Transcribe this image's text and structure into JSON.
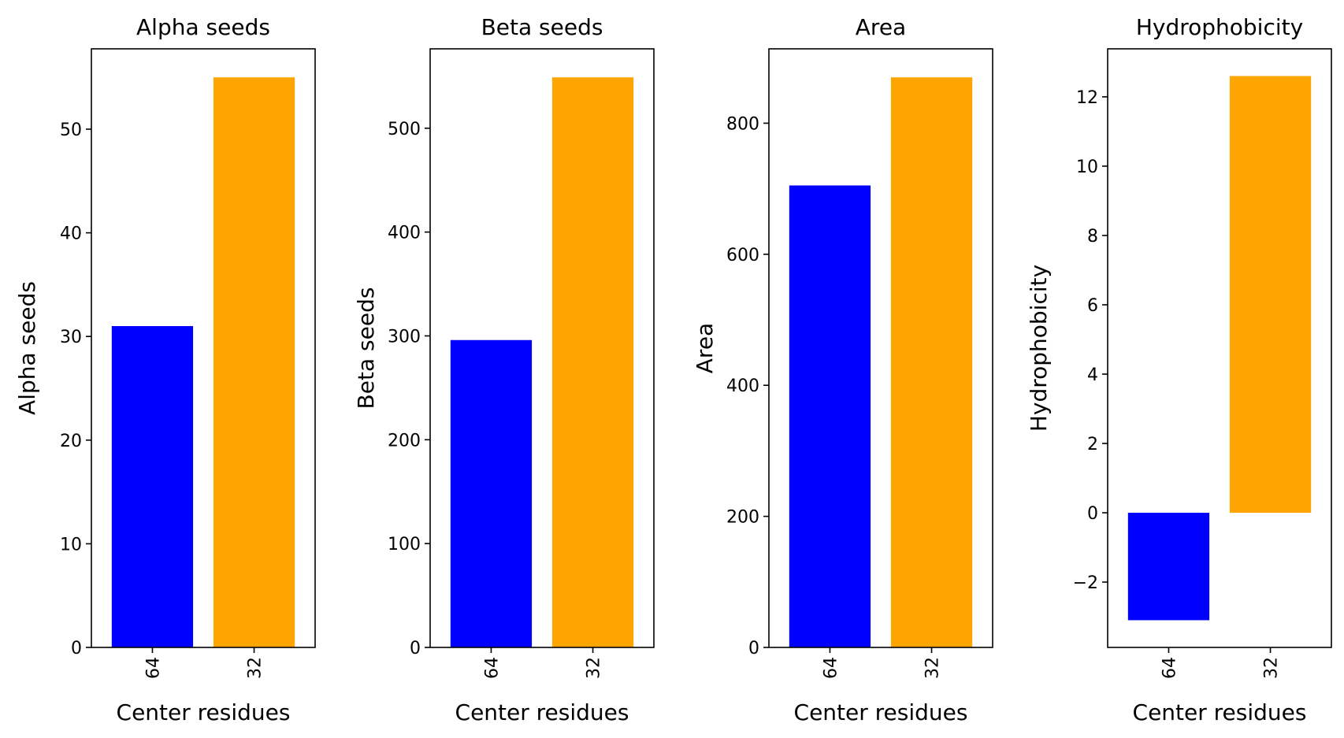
{
  "chart_data": [
    {
      "type": "bar",
      "title": "Alpha seeds",
      "xlabel": "Center residues",
      "ylabel": "Alpha seeds",
      "categories": [
        "64",
        "32"
      ],
      "values": [
        31,
        55
      ],
      "colors": [
        "#0000ff",
        "#ffa500"
      ],
      "ylim": [
        0,
        57.75
      ],
      "yticks": [
        0,
        10,
        20,
        30,
        40,
        50
      ],
      "ytick_labels": [
        "0",
        "10",
        "20",
        "30",
        "40",
        "50"
      ],
      "grid": false
    },
    {
      "type": "bar",
      "title": "Beta seeds",
      "xlabel": "Center residues",
      "ylabel": "Beta seeds",
      "categories": [
        "64",
        "32"
      ],
      "values": [
        296,
        549
      ],
      "colors": [
        "#0000ff",
        "#ffa500"
      ],
      "ylim": [
        0,
        576.45
      ],
      "yticks": [
        0,
        100,
        200,
        300,
        400,
        500
      ],
      "ytick_labels": [
        "0",
        "100",
        "200",
        "300",
        "400",
        "500"
      ],
      "grid": false
    },
    {
      "type": "bar",
      "title": "Area",
      "xlabel": "Center residues",
      "ylabel": "Area",
      "categories": [
        "64",
        "32"
      ],
      "values": [
        705,
        870
      ],
      "colors": [
        "#0000ff",
        "#ffa500"
      ],
      "ylim": [
        0,
        913.5
      ],
      "yticks": [
        0,
        200,
        400,
        600,
        800
      ],
      "ytick_labels": [
        "0",
        "200",
        "400",
        "600",
        "800"
      ],
      "grid": false
    },
    {
      "type": "bar",
      "title": "Hydrophobicity",
      "xlabel": "Center residues",
      "ylabel": "Hydrophobicity",
      "categories": [
        "64",
        "32"
      ],
      "values": [
        -3.1,
        12.6
      ],
      "colors": [
        "#0000ff",
        "#ffa500"
      ],
      "ylim": [
        -3.885,
        13.385
      ],
      "yticks": [
        -2,
        0,
        2,
        4,
        6,
        8,
        10,
        12
      ],
      "ytick_labels": [
        "−2",
        "0",
        "2",
        "4",
        "6",
        "8",
        "10",
        "12"
      ],
      "grid": false
    }
  ]
}
